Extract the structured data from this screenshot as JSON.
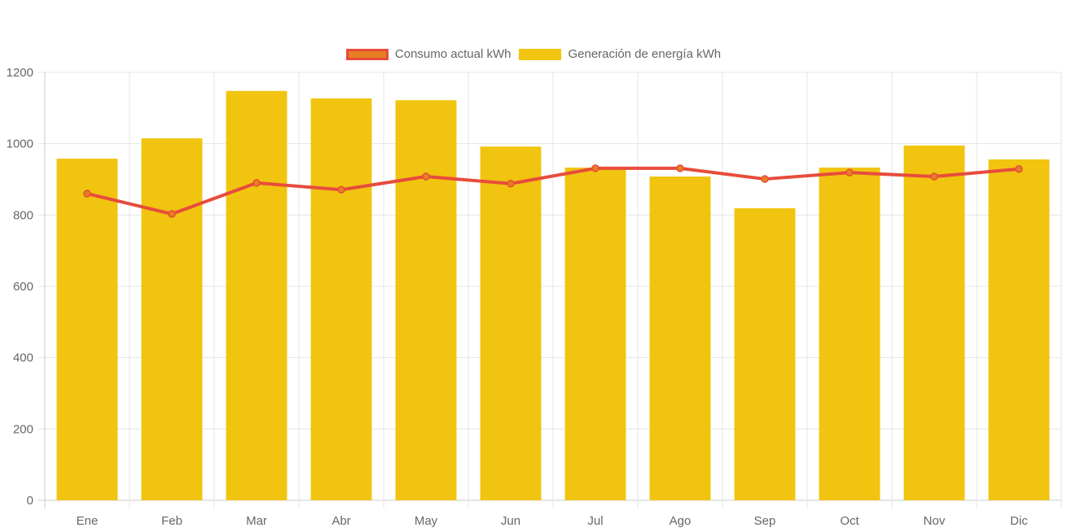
{
  "legend": [
    {
      "label": "Consumo actual kWh",
      "fill": "#e67e22",
      "stroke": "#e74c3c"
    },
    {
      "label": "Generación de energía kWh",
      "fill": "#f1c40f",
      "stroke": "#f1c40f"
    }
  ],
  "chart_data": {
    "type": "bar",
    "title": "",
    "xlabel": "",
    "ylabel": "",
    "ylim": [
      0,
      1200
    ],
    "yticks": [
      0,
      200,
      400,
      600,
      800,
      1000,
      1200
    ],
    "grid": true,
    "legend_position": "top-center",
    "categories": [
      "Ene",
      "Feb",
      "Mar",
      "Abr",
      "May",
      "Jun",
      "Jul",
      "Ago",
      "Sep",
      "Oct",
      "Nov",
      "Dic"
    ],
    "series": [
      {
        "name": "Consumo actual kWh",
        "type": "line",
        "color": "#e74c3c",
        "point_color": "#e67e22",
        "values": [
          860,
          803,
          890,
          871,
          908,
          888,
          931,
          931,
          901,
          919,
          908,
          929
        ]
      },
      {
        "name": "Generación de energía kWh",
        "type": "bar",
        "color": "#f1c40f",
        "values": [
          958,
          1015,
          1148,
          1127,
          1122,
          992,
          933,
          908,
          819,
          933,
          995,
          956
        ]
      }
    ]
  }
}
